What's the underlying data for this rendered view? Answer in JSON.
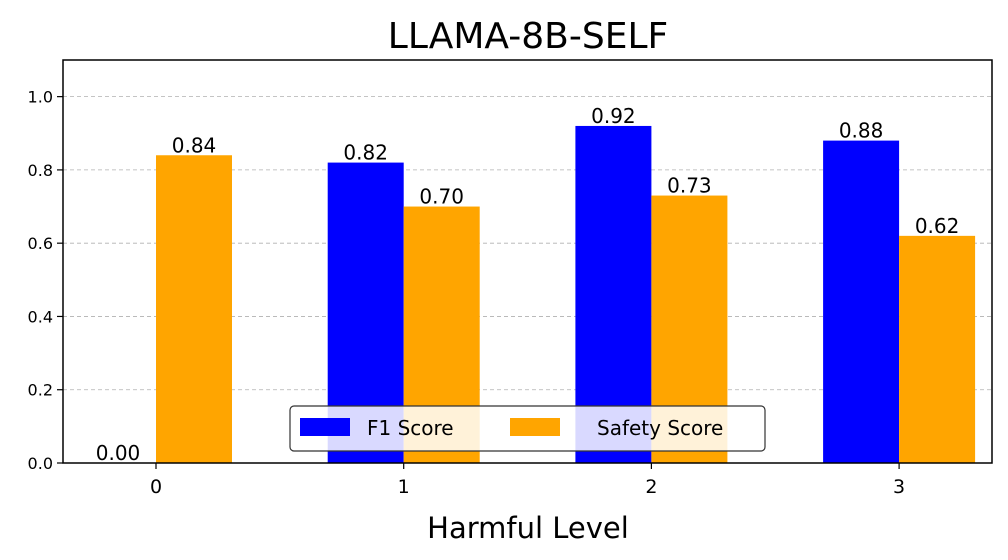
{
  "chart_data": {
    "type": "bar",
    "title": "LLAMA-8B-SELF",
    "xlabel": "Harmful Level",
    "ylabel": "",
    "categories": [
      "0",
      "1",
      "2",
      "3"
    ],
    "series": [
      {
        "name": "F1 Score",
        "color": "#0000ff",
        "values": [
          0.0,
          0.82,
          0.92,
          0.88
        ],
        "labels": [
          "0.00",
          "0.82",
          "0.92",
          "0.88"
        ]
      },
      {
        "name": "Safety Score",
        "color": "#ffa500",
        "values": [
          0.84,
          0.7,
          0.73,
          0.62
        ],
        "labels": [
          "0.84",
          "0.70",
          "0.73",
          "0.62"
        ]
      }
    ],
    "ylim": [
      0,
      1.1
    ],
    "yticks": [
      "0.0",
      "0.2",
      "0.4",
      "0.6",
      "0.8",
      "1.0"
    ],
    "grid": "horizontal dashed",
    "legend": "bottom-center"
  }
}
